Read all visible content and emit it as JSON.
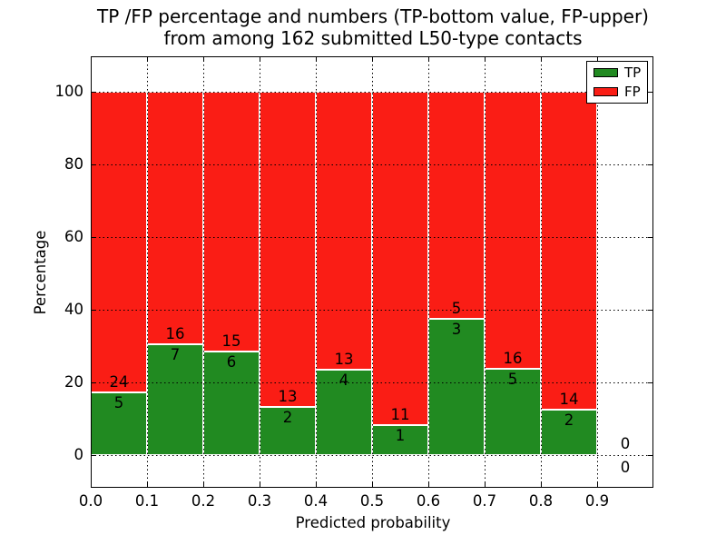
{
  "title": {
    "line1": "TP /FP percentage and numbers (TP-bottom value, FP-upper)",
    "line2": "from among 162 submitted L50-type contacts"
  },
  "axes": {
    "xlabel": "Predicted probability",
    "ylabel": "Percentage",
    "xtick_labels": [
      "0.0",
      "0.1",
      "0.2",
      "0.3",
      "0.4",
      "0.5",
      "0.6",
      "0.7",
      "0.8",
      "0.9"
    ],
    "xtick_values": [
      0.0,
      0.1,
      0.2,
      0.3,
      0.4,
      0.5,
      0.6,
      0.7,
      0.8,
      0.9
    ],
    "ytick_labels": [
      "0",
      "20",
      "40",
      "60",
      "80",
      "100"
    ],
    "ytick_values": [
      0,
      20,
      40,
      60,
      80,
      100
    ],
    "xlim": [
      0.0,
      1.0
    ],
    "grid_style": "dotted"
  },
  "legend": {
    "position": "upper-right",
    "items": [
      {
        "label": "TP",
        "color": "#218a21"
      },
      {
        "label": "FP",
        "color": "#fa1d15"
      }
    ]
  },
  "colors": {
    "tp": "#218a21",
    "fp": "#fa1d15",
    "bar_edge": "#ffffff",
    "grid": "#000000",
    "background": "#ffffff"
  },
  "chart_data": {
    "type": "bar",
    "stacked": true,
    "normalized_total": 100,
    "bin_width": 0.1,
    "categories": [
      "0.0",
      "0.1",
      "0.2",
      "0.3",
      "0.4",
      "0.5",
      "0.6",
      "0.7",
      "0.8",
      "0.9"
    ],
    "series": [
      {
        "name": "TP",
        "color": "#218a21",
        "counts": [
          5,
          7,
          6,
          2,
          4,
          1,
          3,
          5,
          2,
          0
        ]
      },
      {
        "name": "FP",
        "color": "#fa1d15",
        "counts": [
          24,
          16,
          15,
          13,
          13,
          11,
          5,
          16,
          14,
          0
        ]
      }
    ],
    "tp_percent": [
      17.24,
      30.43,
      28.57,
      13.33,
      23.53,
      8.33,
      37.5,
      23.81,
      12.5,
      null
    ],
    "total_contacts": 162,
    "title": "TP /FP percentage and numbers (TP-bottom value, FP-upper) from among 162 submitted L50-type contacts",
    "xlabel": "Predicted probability",
    "ylabel": "Percentage",
    "ylim": [
      0,
      100
    ],
    "legend_entries": [
      "TP",
      "FP"
    ],
    "annotation_rule": "TP count below segment boundary, FP count above boundary; bins with zero contacts show 0 above and below the baseline"
  }
}
